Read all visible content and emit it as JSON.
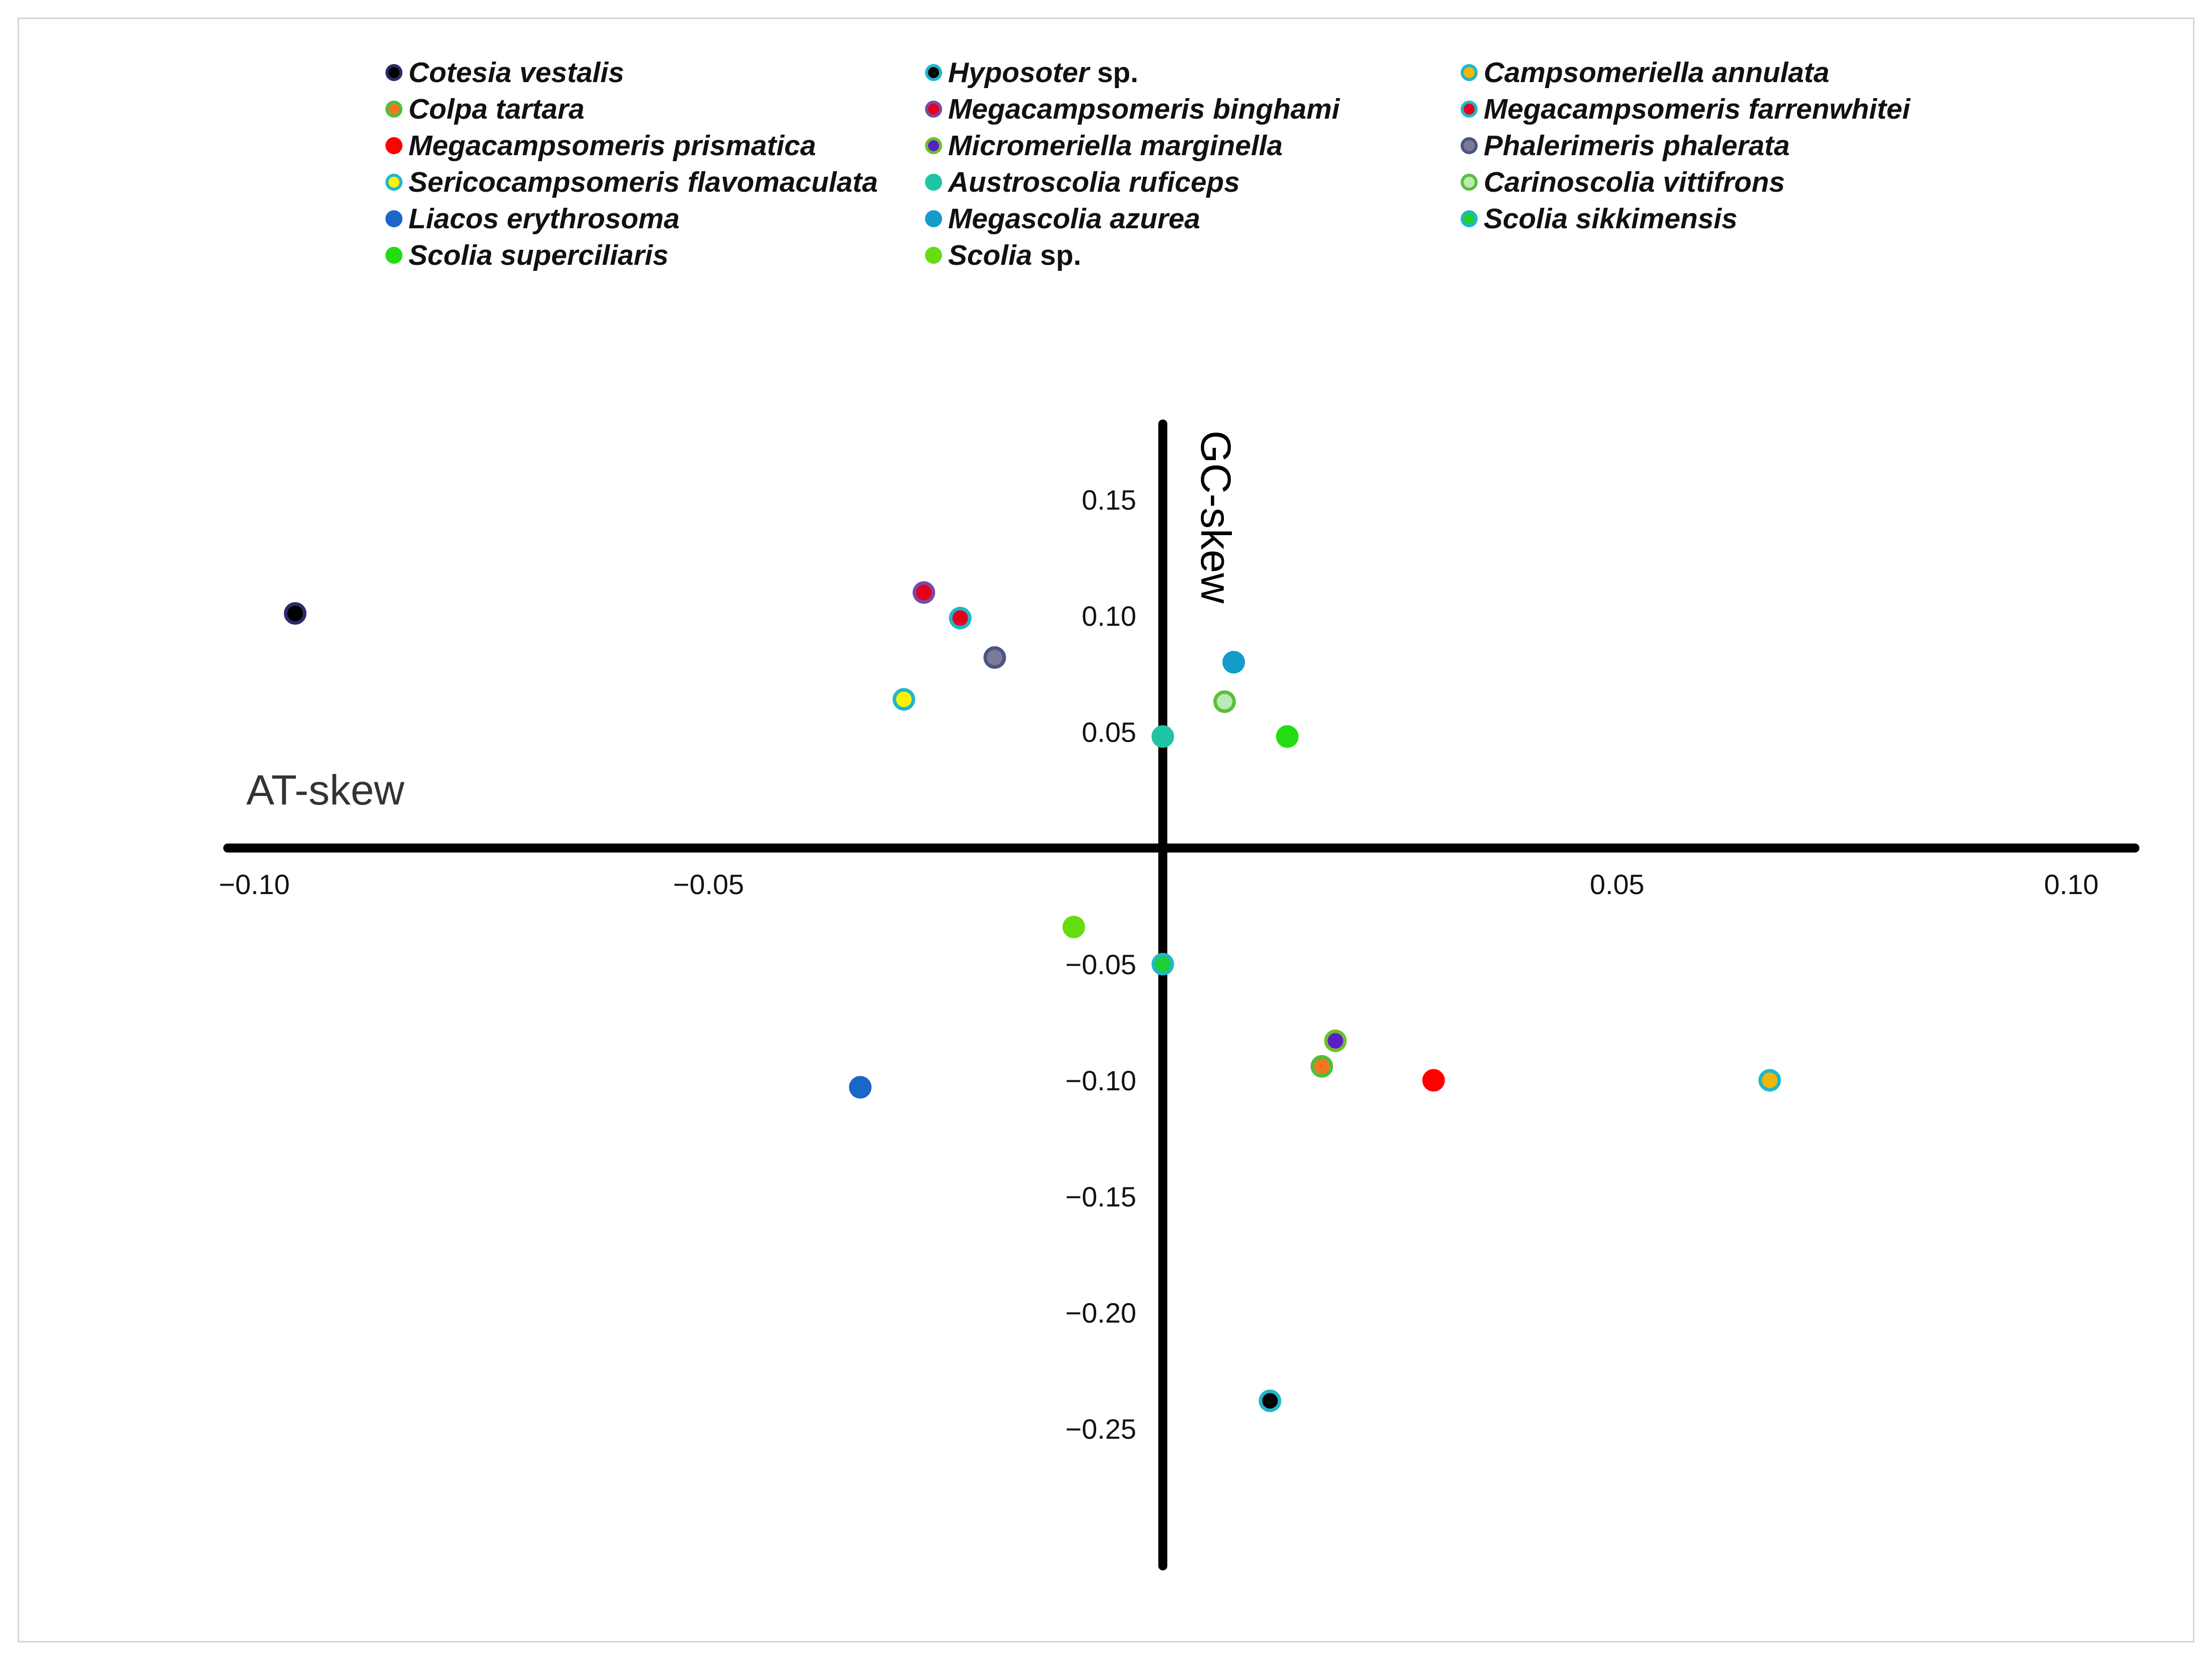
{
  "chart_data": {
    "type": "scatter",
    "title": "",
    "xlabel": "AT-skew",
    "ylabel": "GC-skew",
    "xlim": [
      -0.1,
      0.1
    ],
    "ylim": [
      -0.3,
      0.18
    ],
    "x_ticks": [
      {
        "value": -0.1,
        "label": "−0.10"
      },
      {
        "value": -0.05,
        "label": "−0.05"
      },
      {
        "value": 0.05,
        "label": "0.05"
      },
      {
        "value": 0.1,
        "label": "0.10"
      }
    ],
    "y_ticks": [
      {
        "value": 0.15,
        "label": "0.15"
      },
      {
        "value": 0.1,
        "label": "0.10"
      },
      {
        "value": 0.05,
        "label": "0.05"
      },
      {
        "value": -0.05,
        "label": "−0.05"
      },
      {
        "value": -0.1,
        "label": "−0.10"
      },
      {
        "value": -0.15,
        "label": "−0.15"
      },
      {
        "value": -0.2,
        "label": "−0.20"
      },
      {
        "value": -0.25,
        "label": "−0.25"
      }
    ],
    "grid": false,
    "legend_position": "top",
    "series": [
      {
        "name": "Cotesia vestalis",
        "fill": "#000000",
        "stroke": "#2b2b6b",
        "x": -0.0955,
        "y": 0.101
      },
      {
        "name": "Hyposoter sp.",
        "fill": "#000000",
        "stroke": "#1fb7c9",
        "x": 0.0118,
        "y": -0.238
      },
      {
        "name": "Campsomeriella annulata",
        "fill": "#f2b705",
        "stroke": "#1fb7c9",
        "x": 0.0668,
        "y": -0.1
      },
      {
        "name": "Colpa tartara",
        "fill": "#f07820",
        "stroke": "#4dbf3a",
        "x": 0.0175,
        "y": -0.094
      },
      {
        "name": "Megacampsomeris binghami",
        "fill": "#e5001b",
        "stroke": "#7a4aa8",
        "x": -0.0263,
        "y": 0.11
      },
      {
        "name": "Megacampsomeris farrenwhitei",
        "fill": "#e5001b",
        "stroke": "#1fb7c9",
        "x": -0.0223,
        "y": 0.099
      },
      {
        "name": "Megacampsomeris prismatica",
        "fill": "#ff0000",
        "stroke": "#ff0000",
        "x": 0.0298,
        "y": -0.1
      },
      {
        "name": "Micromeriella marginella",
        "fill": "#5a1fc9",
        "stroke": "#6fbf2a",
        "x": 0.019,
        "y": -0.083
      },
      {
        "name": "Phalerimeris phalerata",
        "fill": "#7b7b99",
        "stroke": "#4c5580",
        "x": -0.0185,
        "y": 0.082
      },
      {
        "name": "Sericocampsomeris flavomaculata",
        "fill": "#fff200",
        "stroke": "#1fb7c9",
        "x": -0.0285,
        "y": 0.064
      },
      {
        "name": "Austroscolia ruficeps",
        "fill": "#1fc4a3",
        "stroke": "#1fc4a3",
        "x": 0.0,
        "y": 0.048
      },
      {
        "name": "Carinoscolia vittifrons",
        "fill": "#b8ebb5",
        "stroke": "#5bbf3a",
        "x": 0.0068,
        "y": 0.063
      },
      {
        "name": "Liacos erythrosoma",
        "fill": "#1a66c9",
        "stroke": "#1a66c9",
        "x": -0.0333,
        "y": -0.103
      },
      {
        "name": "Megascolia  azurea",
        "fill": "#139bc9",
        "stroke": "#139bc9",
        "x": 0.0078,
        "y": 0.08
      },
      {
        "name": "Scolia sikkimensis",
        "fill": "#22cc33",
        "stroke": "#1fb7c9",
        "x": 0.0,
        "y": -0.05
      },
      {
        "name": "Scolia superciliaris",
        "fill": "#22dd11",
        "stroke": "#22dd11",
        "x": 0.0137,
        "y": 0.048
      },
      {
        "name": "Scolia sp.",
        "fill": "#66dd11",
        "stroke": "#66dd11",
        "x": -0.0098,
        "y": -0.034
      }
    ]
  }
}
